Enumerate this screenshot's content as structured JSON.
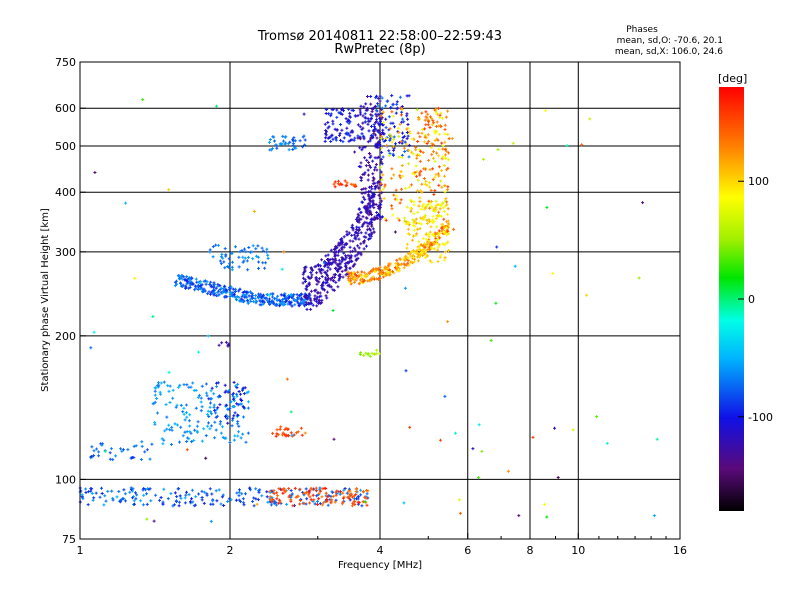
{
  "chart_data": {
    "type": "scatter",
    "title": "Tromsø 20140811 22:58:00–22:59:43",
    "subtitle": "RwPretec (8p)",
    "stats": {
      "heading": "Phases",
      "line_o": "mean, sd,O: -70.6, 20.1",
      "line_x": "mean, sd,X: 106.0, 24.6"
    },
    "xlabel": "Frequency [MHz]",
    "ylabel": "Stationary phase Virtual Height [km]",
    "xscale": "log",
    "yscale": "log",
    "xlim": [
      1,
      16
    ],
    "ylim": [
      75,
      750
    ],
    "x_ticks": [
      1,
      2,
      4,
      6,
      8,
      10,
      16
    ],
    "y_ticks": [
      75,
      100,
      200,
      300,
      400,
      500,
      600,
      750
    ],
    "x_grid": [
      2,
      4,
      6,
      8,
      10
    ],
    "y_grid": [
      100,
      200,
      300,
      400,
      500,
      600
    ],
    "grid": true,
    "colorbar": {
      "label": "[deg]",
      "min": -180,
      "max": 180,
      "ticks": [
        100,
        0,
        -100
      ]
    },
    "clusters": [
      {
        "f": [
          1.55,
          2.9
        ],
        "h": [
          236,
          262
        ],
        "phase": [
          -100,
          -55
        ],
        "n": 340,
        "shape": "band",
        "h0": 262,
        "h1": 238
      },
      {
        "f": [
          2.4,
          2.85
        ],
        "h": [
          490,
          525
        ],
        "phase": [
          -85,
          -55
        ],
        "n": 40,
        "shape": "box"
      },
      {
        "f": [
          1.8,
          2.4
        ],
        "h": [
          275,
          310
        ],
        "phase": [
          -80,
          -55
        ],
        "n": 60,
        "shape": "box"
      },
      {
        "f": [
          2.8,
          3.9
        ],
        "h": [
          250,
          350
        ],
        "phase": [
          -135,
          -105
        ],
        "n": 380,
        "shape": "curveO"
      },
      {
        "f": [
          3.1,
          3.9
        ],
        "h": [
          510,
          600
        ],
        "phase": [
          -120,
          -85
        ],
        "n": 110,
        "shape": "box"
      },
      {
        "f": [
          3.55,
          4.05
        ],
        "h": [
          350,
          640
        ],
        "phase": [
          -140,
          -100
        ],
        "n": 200,
        "shape": "vertO"
      },
      {
        "f": [
          3.9,
          4.6
        ],
        "h": [
          470,
          640
        ],
        "phase": [
          -120,
          -70
        ],
        "n": 90,
        "shape": "box"
      },
      {
        "f": [
          4.0,
          5.5
        ],
        "h": [
          340,
          600
        ],
        "phase": [
          60,
          160
        ],
        "n": 200,
        "shape": "box"
      },
      {
        "f": [
          3.45,
          5.5
        ],
        "h": [
          262,
          340
        ],
        "phase": [
          90,
          155
        ],
        "n": 260,
        "shape": "curveX"
      },
      {
        "f": [
          4.5,
          5.5
        ],
        "h": [
          285,
          380
        ],
        "phase": [
          75,
          115
        ],
        "n": 140,
        "shape": "box"
      },
      {
        "f": [
          4.7,
          5.6
        ],
        "h": [
          400,
          600
        ],
        "phase": [
          115,
          160
        ],
        "n": 50,
        "shape": "box"
      },
      {
        "f": [
          1.05,
          1.4
        ],
        "h": [
          110,
          120
        ],
        "phase": [
          -90,
          -60
        ],
        "n": 35,
        "shape": "box"
      },
      {
        "f": [
          1.4,
          2.2
        ],
        "h": [
          118,
          160
        ],
        "phase": [
          -75,
          -45
        ],
        "n": 170,
        "shape": "box"
      },
      {
        "f": [
          1.8,
          2.15
        ],
        "h": [
          130,
          160
        ],
        "phase": [
          -110,
          -80
        ],
        "n": 40,
        "shape": "box"
      },
      {
        "f": [
          2.4,
          2.8
        ],
        "h": [
          123,
          129
        ],
        "phase": [
          140,
          170
        ],
        "n": 25,
        "shape": "box"
      },
      {
        "f": [
          3.6,
          4.0
        ],
        "h": [
          181,
          187
        ],
        "phase": [
          40,
          60
        ],
        "n": 14,
        "shape": "box"
      },
      {
        "f": [
          1.9,
          2.0
        ],
        "h": [
          190,
          195
        ],
        "phase": [
          -130,
          -115
        ],
        "n": 6,
        "shape": "box"
      },
      {
        "f": [
          1.0,
          3.8
        ],
        "h": [
          88,
          96
        ],
        "phase": [
          -100,
          -50
        ],
        "n": 230,
        "shape": "box"
      },
      {
        "f": [
          2.4,
          3.8
        ],
        "h": [
          88,
          96
        ],
        "phase": [
          130,
          175
        ],
        "n": 110,
        "shape": "box"
      },
      {
        "f": [
          3.2,
          3.6
        ],
        "h": [
          410,
          425
        ],
        "phase": [
          140,
          170
        ],
        "n": 18,
        "shape": "box"
      },
      {
        "f": [
          1.0,
          16.0
        ],
        "h": [
          80,
          660
        ],
        "phase": [
          -160,
          170
        ],
        "n": 80,
        "shape": "box"
      }
    ]
  }
}
